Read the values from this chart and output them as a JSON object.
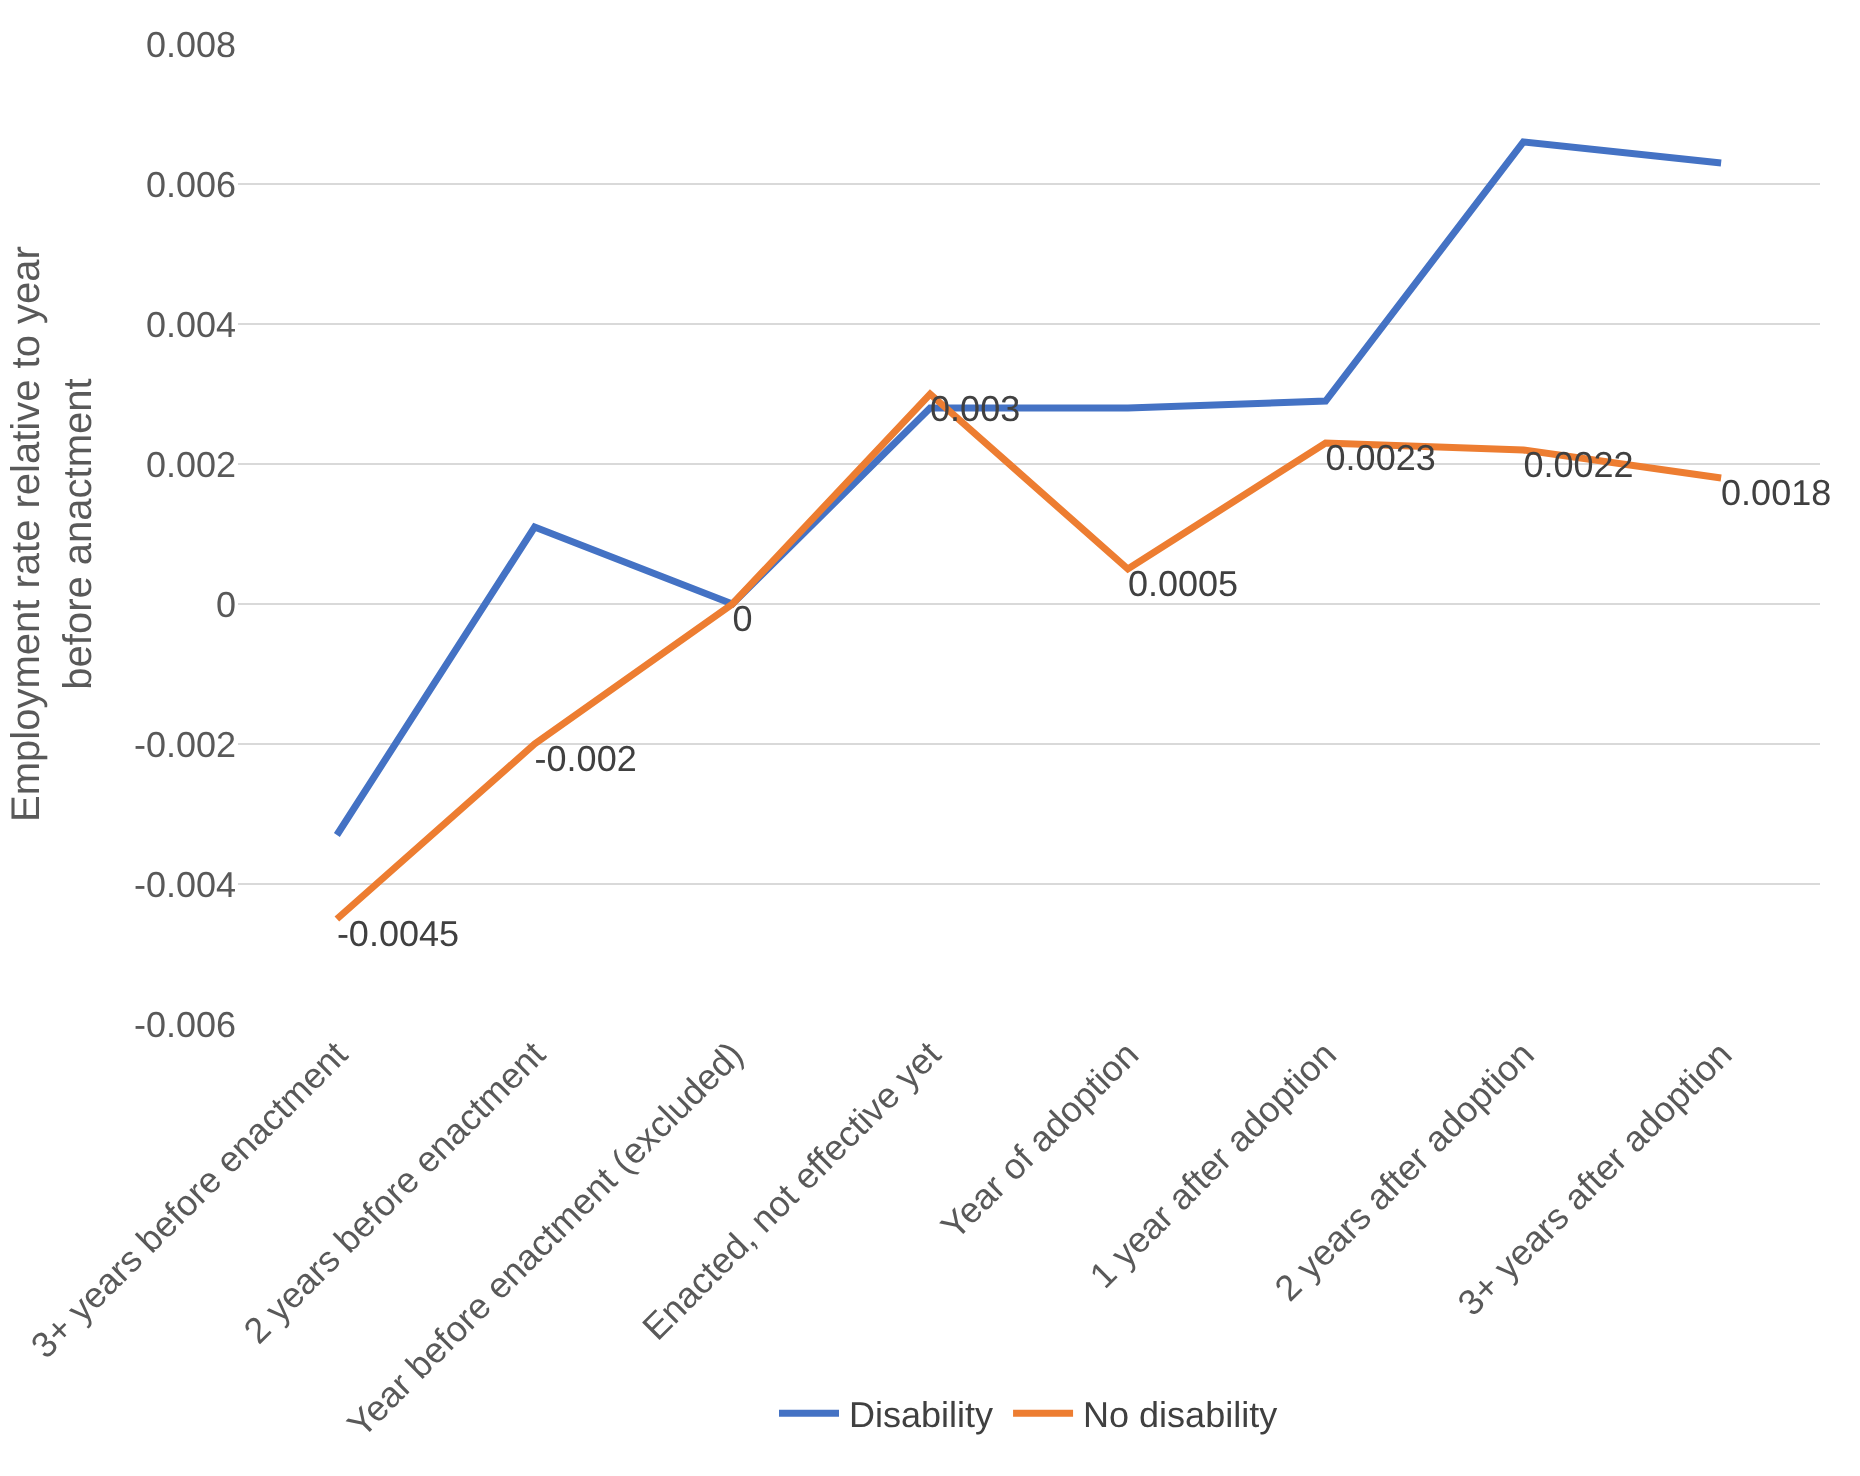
{
  "chart_data": {
    "type": "line",
    "ylabel": "Employment rate relative to year before anactment",
    "categories": [
      "3+ years before enactment",
      "2 years before enactment",
      "Year before enactment (excluded)",
      "Enacted, not effective yet",
      "Year of adoption",
      "1 year after adoption",
      "2 years after adoption",
      "3+ years after adoption"
    ],
    "series": [
      {
        "name": "Disability",
        "color": "#4472c4",
        "values": [
          -0.0033,
          0.0011,
          0,
          0.0028,
          0.0028,
          0.0029,
          0.0066,
          0.0063
        ]
      },
      {
        "name": "No disability",
        "color": "#ed7d31",
        "values": [
          -0.0045,
          -0.002,
          0,
          0.003,
          0.0005,
          0.0023,
          0.0022,
          0.0018
        ],
        "value_labels": [
          "-0.0045",
          "-0.002",
          "0",
          "0.003",
          "0.0005",
          "0.0023",
          "0.0022",
          "0.0018"
        ]
      }
    ],
    "ylim": [
      -0.006,
      0.008
    ],
    "yticks": [
      -0.006,
      -0.004,
      -0.002,
      0,
      0.002,
      0.004,
      0.006,
      0.008
    ],
    "grid": "y",
    "legend": "bottom",
    "marker": "none",
    "line_style": "solid"
  }
}
